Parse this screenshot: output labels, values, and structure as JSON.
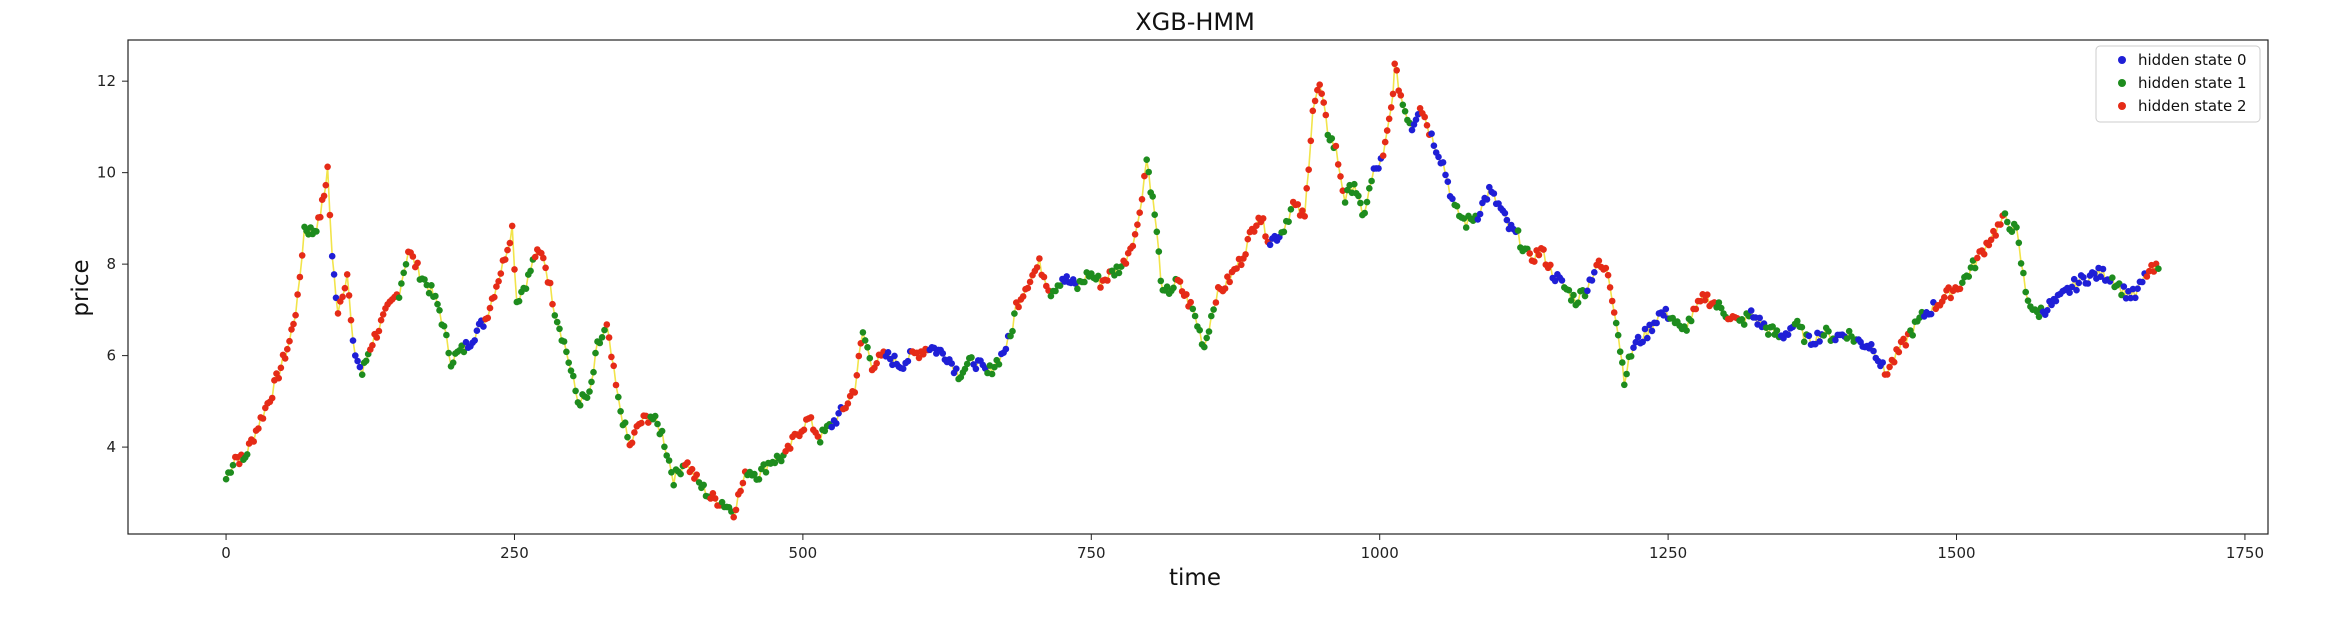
{
  "chart_data": {
    "type": "scatter",
    "title": "XGB-HMM",
    "xlabel": "time",
    "ylabel": "price",
    "xlim": [
      -85,
      1770
    ],
    "ylim": [
      2.1,
      12.9
    ],
    "xticks": [
      0,
      250,
      500,
      750,
      1000,
      1250,
      1500,
      1750
    ],
    "yticks": [
      4,
      6,
      8,
      10,
      12
    ],
    "grid": false,
    "legend_position": "top-right",
    "line_color": "#f2e44a",
    "series": [
      {
        "name": "hidden state 0",
        "color": "#1f1fd6"
      },
      {
        "name": "hidden state 1",
        "color": "#1e8c1e"
      },
      {
        "name": "hidden state 2",
        "color": "#e52b17"
      }
    ],
    "segments": [
      [
        0,
        3.3,
        1
      ],
      [
        8,
        3.8,
        2
      ],
      [
        15,
        3.7,
        1
      ],
      [
        20,
        4.0,
        2
      ],
      [
        40,
        5.2,
        2
      ],
      [
        55,
        6.3,
        2
      ],
      [
        62,
        7.2,
        2
      ],
      [
        68,
        8.8,
        1
      ],
      [
        75,
        8.7,
        1
      ],
      [
        80,
        8.9,
        2
      ],
      [
        85,
        9.5,
        2
      ],
      [
        88,
        10.1,
        2
      ],
      [
        92,
        8.1,
        0
      ],
      [
        97,
        7.0,
        2
      ],
      [
        105,
        7.8,
        2
      ],
      [
        110,
        6.2,
        0
      ],
      [
        118,
        5.6,
        1
      ],
      [
        125,
        6.2,
        2
      ],
      [
        140,
        7.0,
        2
      ],
      [
        150,
        7.4,
        1
      ],
      [
        158,
        8.3,
        2
      ],
      [
        168,
        7.8,
        1
      ],
      [
        178,
        7.4,
        1
      ],
      [
        185,
        7.0,
        1
      ],
      [
        195,
        5.9,
        1
      ],
      [
        208,
        6.2,
        0
      ],
      [
        225,
        6.8,
        2
      ],
      [
        240,
        8.0,
        2
      ],
      [
        248,
        8.8,
        2
      ],
      [
        252,
        7.2,
        1
      ],
      [
        262,
        7.7,
        1
      ],
      [
        268,
        8.2,
        2
      ],
      [
        275,
        8.2,
        2
      ],
      [
        285,
        7.0,
        1
      ],
      [
        295,
        6.1,
        1
      ],
      [
        305,
        5.0,
        1
      ],
      [
        315,
        5.1,
        1
      ],
      [
        322,
        6.2,
        1
      ],
      [
        330,
        6.6,
        2
      ],
      [
        340,
        5.0,
        1
      ],
      [
        350,
        4.0,
        2
      ],
      [
        358,
        4.5,
        2
      ],
      [
        368,
        4.7,
        1
      ],
      [
        378,
        4.3,
        1
      ],
      [
        388,
        3.3,
        1
      ],
      [
        398,
        3.7,
        2
      ],
      [
        410,
        3.2,
        1
      ],
      [
        420,
        2.9,
        2
      ],
      [
        430,
        2.8,
        1
      ],
      [
        440,
        2.6,
        2
      ],
      [
        452,
        3.5,
        1
      ],
      [
        462,
        3.4,
        1
      ],
      [
        472,
        3.7,
        1
      ],
      [
        485,
        3.8,
        2
      ],
      [
        495,
        4.3,
        2
      ],
      [
        505,
        4.6,
        2
      ],
      [
        515,
        4.2,
        1
      ],
      [
        525,
        4.5,
        0
      ],
      [
        535,
        4.8,
        2
      ],
      [
        545,
        5.3,
        2
      ],
      [
        552,
        6.5,
        1
      ],
      [
        560,
        5.8,
        2
      ],
      [
        572,
        6.0,
        0
      ],
      [
        585,
        5.8,
        0
      ],
      [
        595,
        6.0,
        2
      ],
      [
        610,
        6.2,
        0
      ],
      [
        625,
        6.0,
        0
      ],
      [
        635,
        5.6,
        1
      ],
      [
        648,
        5.9,
        0
      ],
      [
        660,
        5.6,
        1
      ],
      [
        672,
        6.0,
        0
      ],
      [
        680,
        6.4,
        1
      ],
      [
        685,
        7.1,
        2
      ],
      [
        695,
        7.6,
        2
      ],
      [
        705,
        8.0,
        2
      ],
      [
        715,
        7.4,
        1
      ],
      [
        725,
        7.7,
        0
      ],
      [
        738,
        7.5,
        1
      ],
      [
        748,
        7.8,
        1
      ],
      [
        758,
        7.6,
        2
      ],
      [
        768,
        7.8,
        1
      ],
      [
        778,
        8.0,
        2
      ],
      [
        790,
        8.8,
        2
      ],
      [
        798,
        10.3,
        1
      ],
      [
        805,
        9.1,
        1
      ],
      [
        812,
        7.3,
        1
      ],
      [
        825,
        7.6,
        2
      ],
      [
        838,
        7.0,
        1
      ],
      [
        848,
        6.2,
        1
      ],
      [
        858,
        7.3,
        2
      ],
      [
        868,
        7.6,
        2
      ],
      [
        880,
        8.1,
        2
      ],
      [
        895,
        9.1,
        2
      ],
      [
        905,
        8.5,
        0
      ],
      [
        915,
        8.7,
        1
      ],
      [
        925,
        9.3,
        2
      ],
      [
        935,
        9.0,
        2
      ],
      [
        942,
        11.4,
        2
      ],
      [
        948,
        11.9,
        2
      ],
      [
        955,
        10.9,
        1
      ],
      [
        962,
        10.5,
        2
      ],
      [
        970,
        9.4,
        1
      ],
      [
        978,
        9.8,
        1
      ],
      [
        985,
        9.0,
        1
      ],
      [
        995,
        10.0,
        0
      ],
      [
        1003,
        10.3,
        2
      ],
      [
        1010,
        11.4,
        2
      ],
      [
        1013,
        12.3,
        2
      ],
      [
        1020,
        11.5,
        1
      ],
      [
        1028,
        11.0,
        0
      ],
      [
        1035,
        11.5,
        2
      ],
      [
        1045,
        10.8,
        0
      ],
      [
        1055,
        10.2,
        0
      ],
      [
        1065,
        9.2,
        1
      ],
      [
        1075,
        8.9,
        1
      ],
      [
        1085,
        9.1,
        0
      ],
      [
        1095,
        9.6,
        0
      ],
      [
        1105,
        9.2,
        0
      ],
      [
        1112,
        8.8,
        0
      ],
      [
        1120,
        8.6,
        1
      ],
      [
        1130,
        8.1,
        2
      ],
      [
        1140,
        8.3,
        2
      ],
      [
        1150,
        7.8,
        0
      ],
      [
        1160,
        7.5,
        1
      ],
      [
        1170,
        7.2,
        1
      ],
      [
        1180,
        7.5,
        0
      ],
      [
        1188,
        8.0,
        2
      ],
      [
        1198,
        7.8,
        2
      ],
      [
        1205,
        6.8,
        1
      ],
      [
        1212,
        5.5,
        1
      ],
      [
        1220,
        6.2,
        0
      ],
      [
        1232,
        6.5,
        0
      ],
      [
        1242,
        6.9,
        0
      ],
      [
        1252,
        6.9,
        1
      ],
      [
        1262,
        6.5,
        1
      ],
      [
        1272,
        6.9,
        2
      ],
      [
        1282,
        7.3,
        2
      ],
      [
        1292,
        7.1,
        1
      ],
      [
        1302,
        6.9,
        2
      ],
      [
        1312,
        6.7,
        1
      ],
      [
        1322,
        6.9,
        0
      ],
      [
        1335,
        6.6,
        1
      ],
      [
        1348,
        6.4,
        0
      ],
      [
        1360,
        6.7,
        1
      ],
      [
        1372,
        6.3,
        0
      ],
      [
        1385,
        6.5,
        1
      ],
      [
        1395,
        6.4,
        0
      ],
      [
        1405,
        6.5,
        1
      ],
      [
        1415,
        6.3,
        0
      ],
      [
        1428,
        6.2,
        0
      ],
      [
        1438,
        5.6,
        2
      ],
      [
        1448,
        6.0,
        2
      ],
      [
        1460,
        6.5,
        1
      ],
      [
        1472,
        6.9,
        0
      ],
      [
        1482,
        7.1,
        2
      ],
      [
        1495,
        7.4,
        2
      ],
      [
        1505,
        7.6,
        1
      ],
      [
        1518,
        8.1,
        2
      ],
      [
        1530,
        8.6,
        2
      ],
      [
        1542,
        9.0,
        1
      ],
      [
        1552,
        8.7,
        1
      ],
      [
        1560,
        7.4,
        1
      ],
      [
        1568,
        6.9,
        1
      ],
      [
        1575,
        7.0,
        0
      ],
      [
        1588,
        7.2,
        0
      ],
      [
        1600,
        7.5,
        0
      ],
      [
        1612,
        7.7,
        0
      ],
      [
        1625,
        7.8,
        0
      ],
      [
        1635,
        7.7,
        1
      ],
      [
        1645,
        7.4,
        0
      ],
      [
        1655,
        7.3,
        0
      ],
      [
        1665,
        7.8,
        2
      ],
      [
        1675,
        7.9,
        1
      ]
    ]
  }
}
